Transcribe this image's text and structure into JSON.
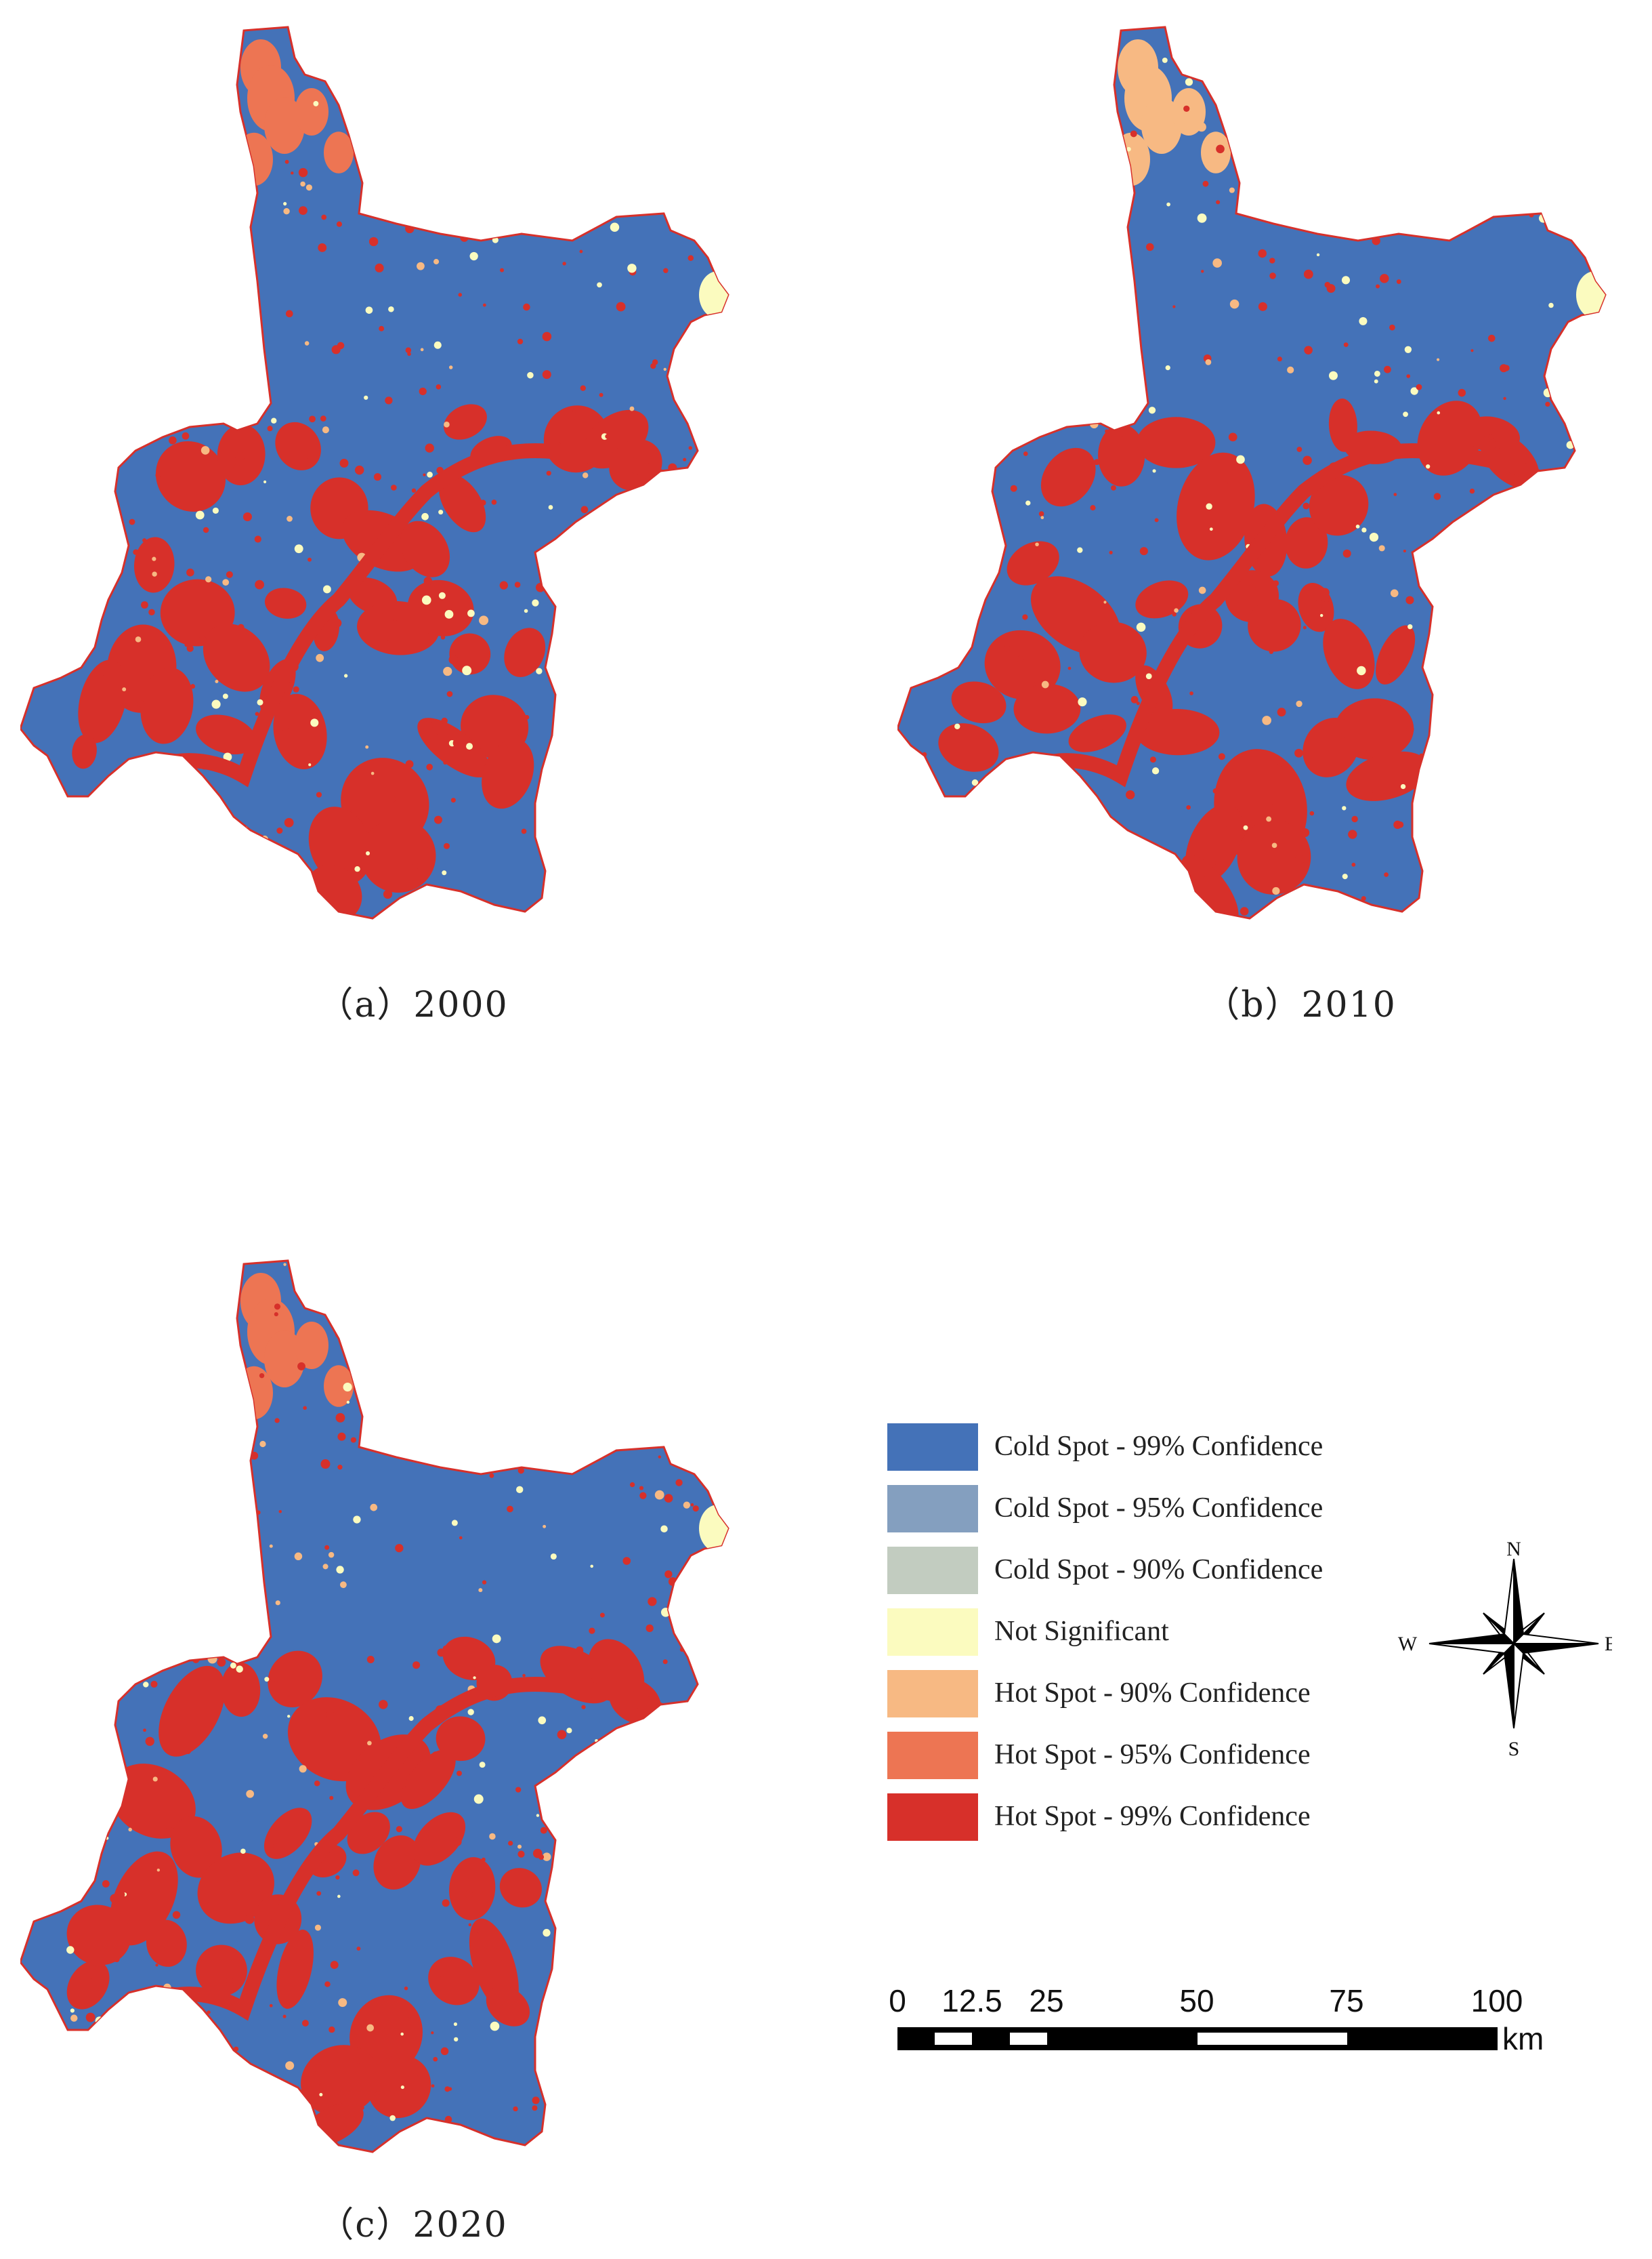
{
  "panels": [
    {
      "caption": "（a）2000"
    },
    {
      "caption": "（b）2010"
    },
    {
      "caption": "（c）2020"
    }
  ],
  "legend": [
    {
      "label": "Cold Spot - 99% Confidence",
      "color": "#4472b8"
    },
    {
      "label": "Cold Spot - 95% Confidence",
      "color": "#849fbf"
    },
    {
      "label": "Cold Spot - 90% Confidence",
      "color": "#c2ccc0"
    },
    {
      "label": "Not Significant",
      "color": "#fbfbbf"
    },
    {
      "label": "Hot Spot - 90% Confidence",
      "color": "#f7b983"
    },
    {
      "label": "Hot Spot - 95% Confidence",
      "color": "#ed7553"
    },
    {
      "label": "Hot Spot - 99% Confidence",
      "color": "#d7302a"
    }
  ],
  "compass": {
    "n": "N",
    "s": "S",
    "e": "E",
    "w": "W"
  },
  "scale_bar": {
    "ticks": [
      "0",
      "12.5",
      "25",
      "50",
      "75",
      "100"
    ],
    "unit": "km"
  },
  "colors": {
    "map_base": "#4472b8",
    "hot": "#d7302a",
    "hot_mid": "#ed7553",
    "hot_light": "#f7b983",
    "not_significant": "#fbfbbf"
  }
}
